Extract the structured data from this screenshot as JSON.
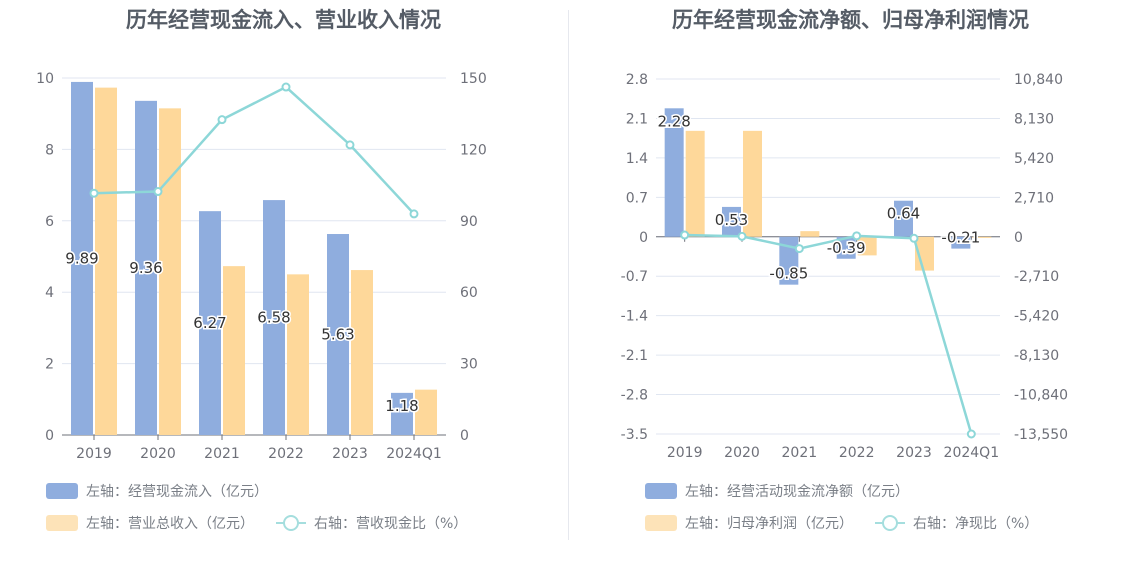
{
  "colors": {
    "bar_blue": "#8fadde",
    "bar_orange": "#fed89a",
    "line": "#8dd7d8",
    "axis_text": "#6e7079",
    "grid": "#e0e6f1",
    "title": "#555c66"
  },
  "chart_data": [
    {
      "type": "bar",
      "title": "历年经营现金流入、营业收入情况",
      "categories": [
        "2019",
        "2020",
        "2021",
        "2022",
        "2023",
        "2024Q1"
      ],
      "left_axis": {
        "ylim": [
          0,
          10
        ],
        "ticks": [
          "0",
          "2",
          "4",
          "6",
          "8",
          "10"
        ],
        "tick_values": [
          0,
          2,
          4,
          6,
          8,
          10
        ]
      },
      "right_axis": {
        "ylim": [
          0,
          150
        ],
        "ticks": [
          "0",
          "30",
          "60",
          "90",
          "120",
          "150"
        ],
        "tick_values": [
          0,
          30,
          60,
          90,
          120,
          150
        ]
      },
      "series": [
        {
          "name": "左轴：经营现金流入（亿元）",
          "axis": "left",
          "kind": "bar",
          "values": [
            9.89,
            9.36,
            6.27,
            6.58,
            5.63,
            1.18
          ],
          "data_labels": [
            "9.89",
            "9.36",
            "6.27",
            "6.58",
            "5.63",
            "1.18"
          ]
        },
        {
          "name": "左轴：营业总收入（亿元）",
          "axis": "left",
          "kind": "bar",
          "values": [
            9.73,
            9.15,
            4.73,
            4.5,
            4.62,
            1.27
          ]
        },
        {
          "name": "右轴：营收现金比（%）",
          "axis": "right",
          "kind": "line",
          "values": [
            101.6,
            102.3,
            132.5,
            146.2,
            121.9,
            92.9
          ]
        }
      ],
      "legend": [
        "左轴：经营现金流入（亿元）",
        "左轴：营业总收入（亿元）",
        "右轴：营收现金比（%）"
      ]
    },
    {
      "type": "bar",
      "title": "历年经营现金流净额、归母净利润情况",
      "categories": [
        "2019",
        "2020",
        "2021",
        "2022",
        "2023",
        "2024Q1"
      ],
      "left_axis": {
        "ylim": [
          -3.5,
          2.8
        ],
        "ticks": [
          "2.8",
          "2.1",
          "1.4",
          "0.7",
          "0",
          "-0.7",
          "-1.4",
          "-2.1",
          "-2.8",
          "-3.5"
        ],
        "tick_values": [
          2.8,
          2.1,
          1.4,
          0.7,
          0,
          -0.7,
          -1.4,
          -2.1,
          -2.8,
          -3.5
        ]
      },
      "right_axis": {
        "ylim": [
          -13550,
          10840
        ],
        "ticks": [
          "10,840",
          "8,130",
          "5,420",
          "2,710",
          "0",
          "-2,710",
          "-5,420",
          "-8,130",
          "-10,840",
          "-13,550"
        ],
        "tick_values": [
          10840,
          8130,
          5420,
          2710,
          0,
          -2710,
          -5420,
          -8130,
          -10840,
          -13550
        ]
      },
      "series": [
        {
          "name": "左轴：经营活动现金流净额（亿元）",
          "axis": "left",
          "kind": "bar",
          "values": [
            2.28,
            0.53,
            -0.85,
            -0.39,
            0.64,
            -0.21
          ],
          "data_labels": [
            "2.28",
            "0.53",
            "-0.85",
            "-0.39",
            "0.64",
            "-0.21"
          ]
        },
        {
          "name": "左轴：归母净利润（亿元）",
          "axis": "left",
          "kind": "bar",
          "values": [
            1.88,
            1.88,
            0.1,
            -0.33,
            -0.6,
            -0.02
          ]
        },
        {
          "name": "右轴：净现比（%）",
          "axis": "right",
          "kind": "line",
          "values": [
            121,
            28,
            -810,
            65,
            -105,
            -13550
          ]
        }
      ],
      "legend": [
        "左轴：经营活动现金流净额（亿元）",
        "左轴：归母净利润（亿元）",
        "右轴：净现比（%）"
      ]
    }
  ]
}
